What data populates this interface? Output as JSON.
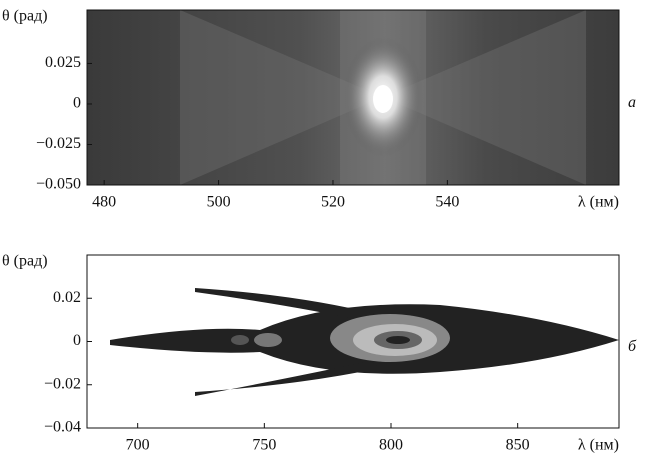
{
  "chart_data": [
    {
      "type": "image",
      "panel_label": "а",
      "xlabel": "λ (нм)",
      "ylabel": "θ (рад)",
      "xlim": [
        477,
        570
      ],
      "xticks": [
        480,
        500,
        520,
        540
      ],
      "ylim": [
        -0.05,
        0.058
      ],
      "yticks": [
        {
          "value": -0.05,
          "label": "−0.050"
        },
        {
          "value": -0.025,
          "label": "−0.025"
        },
        0,
        0.025
      ]
    },
    {
      "type": "contour",
      "panel_label": "б",
      "xlabel": "λ (нм)",
      "ylabel": "θ (рад)",
      "xlim": [
        680,
        890
      ],
      "xticks": [
        700,
        750,
        800,
        850
      ],
      "ylim": [
        -0.04,
        0.04
      ],
      "yticks": [
        {
          "value": -0.04,
          "label": "−0.04"
        },
        {
          "value": -0.02,
          "label": "−0.02"
        },
        0,
        0.02
      ]
    }
  ]
}
